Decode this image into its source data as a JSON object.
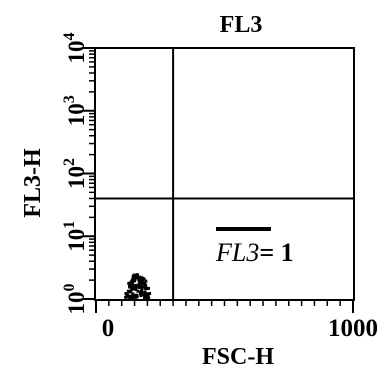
{
  "chart_data": {
    "type": "scatter",
    "title": "FL3",
    "xlabel": "FSC-H",
    "ylabel": "FL3-H",
    "xlim": [
      0,
      1000
    ],
    "ylim_log10": [
      0,
      4
    ],
    "x_scale": "linear",
    "y_scale": "log",
    "x_tick_labels": [
      "0",
      "1000"
    ],
    "y_tick_labels": [
      {
        "base": "10",
        "exp": "0"
      },
      {
        "base": "10",
        "exp": "1"
      },
      {
        "base": "10",
        "exp": "2"
      },
      {
        "base": "10",
        "exp": "3"
      },
      {
        "base": "10",
        "exp": "4"
      }
    ],
    "quadrant_gates": {
      "x": 300,
      "y": 40
    },
    "annotation": {
      "italic": "FL3",
      "rest": "= 1"
    },
    "cluster": {
      "x_range": [
        115,
        210
      ],
      "y_range": [
        1,
        2.5
      ],
      "count": 120
    }
  }
}
